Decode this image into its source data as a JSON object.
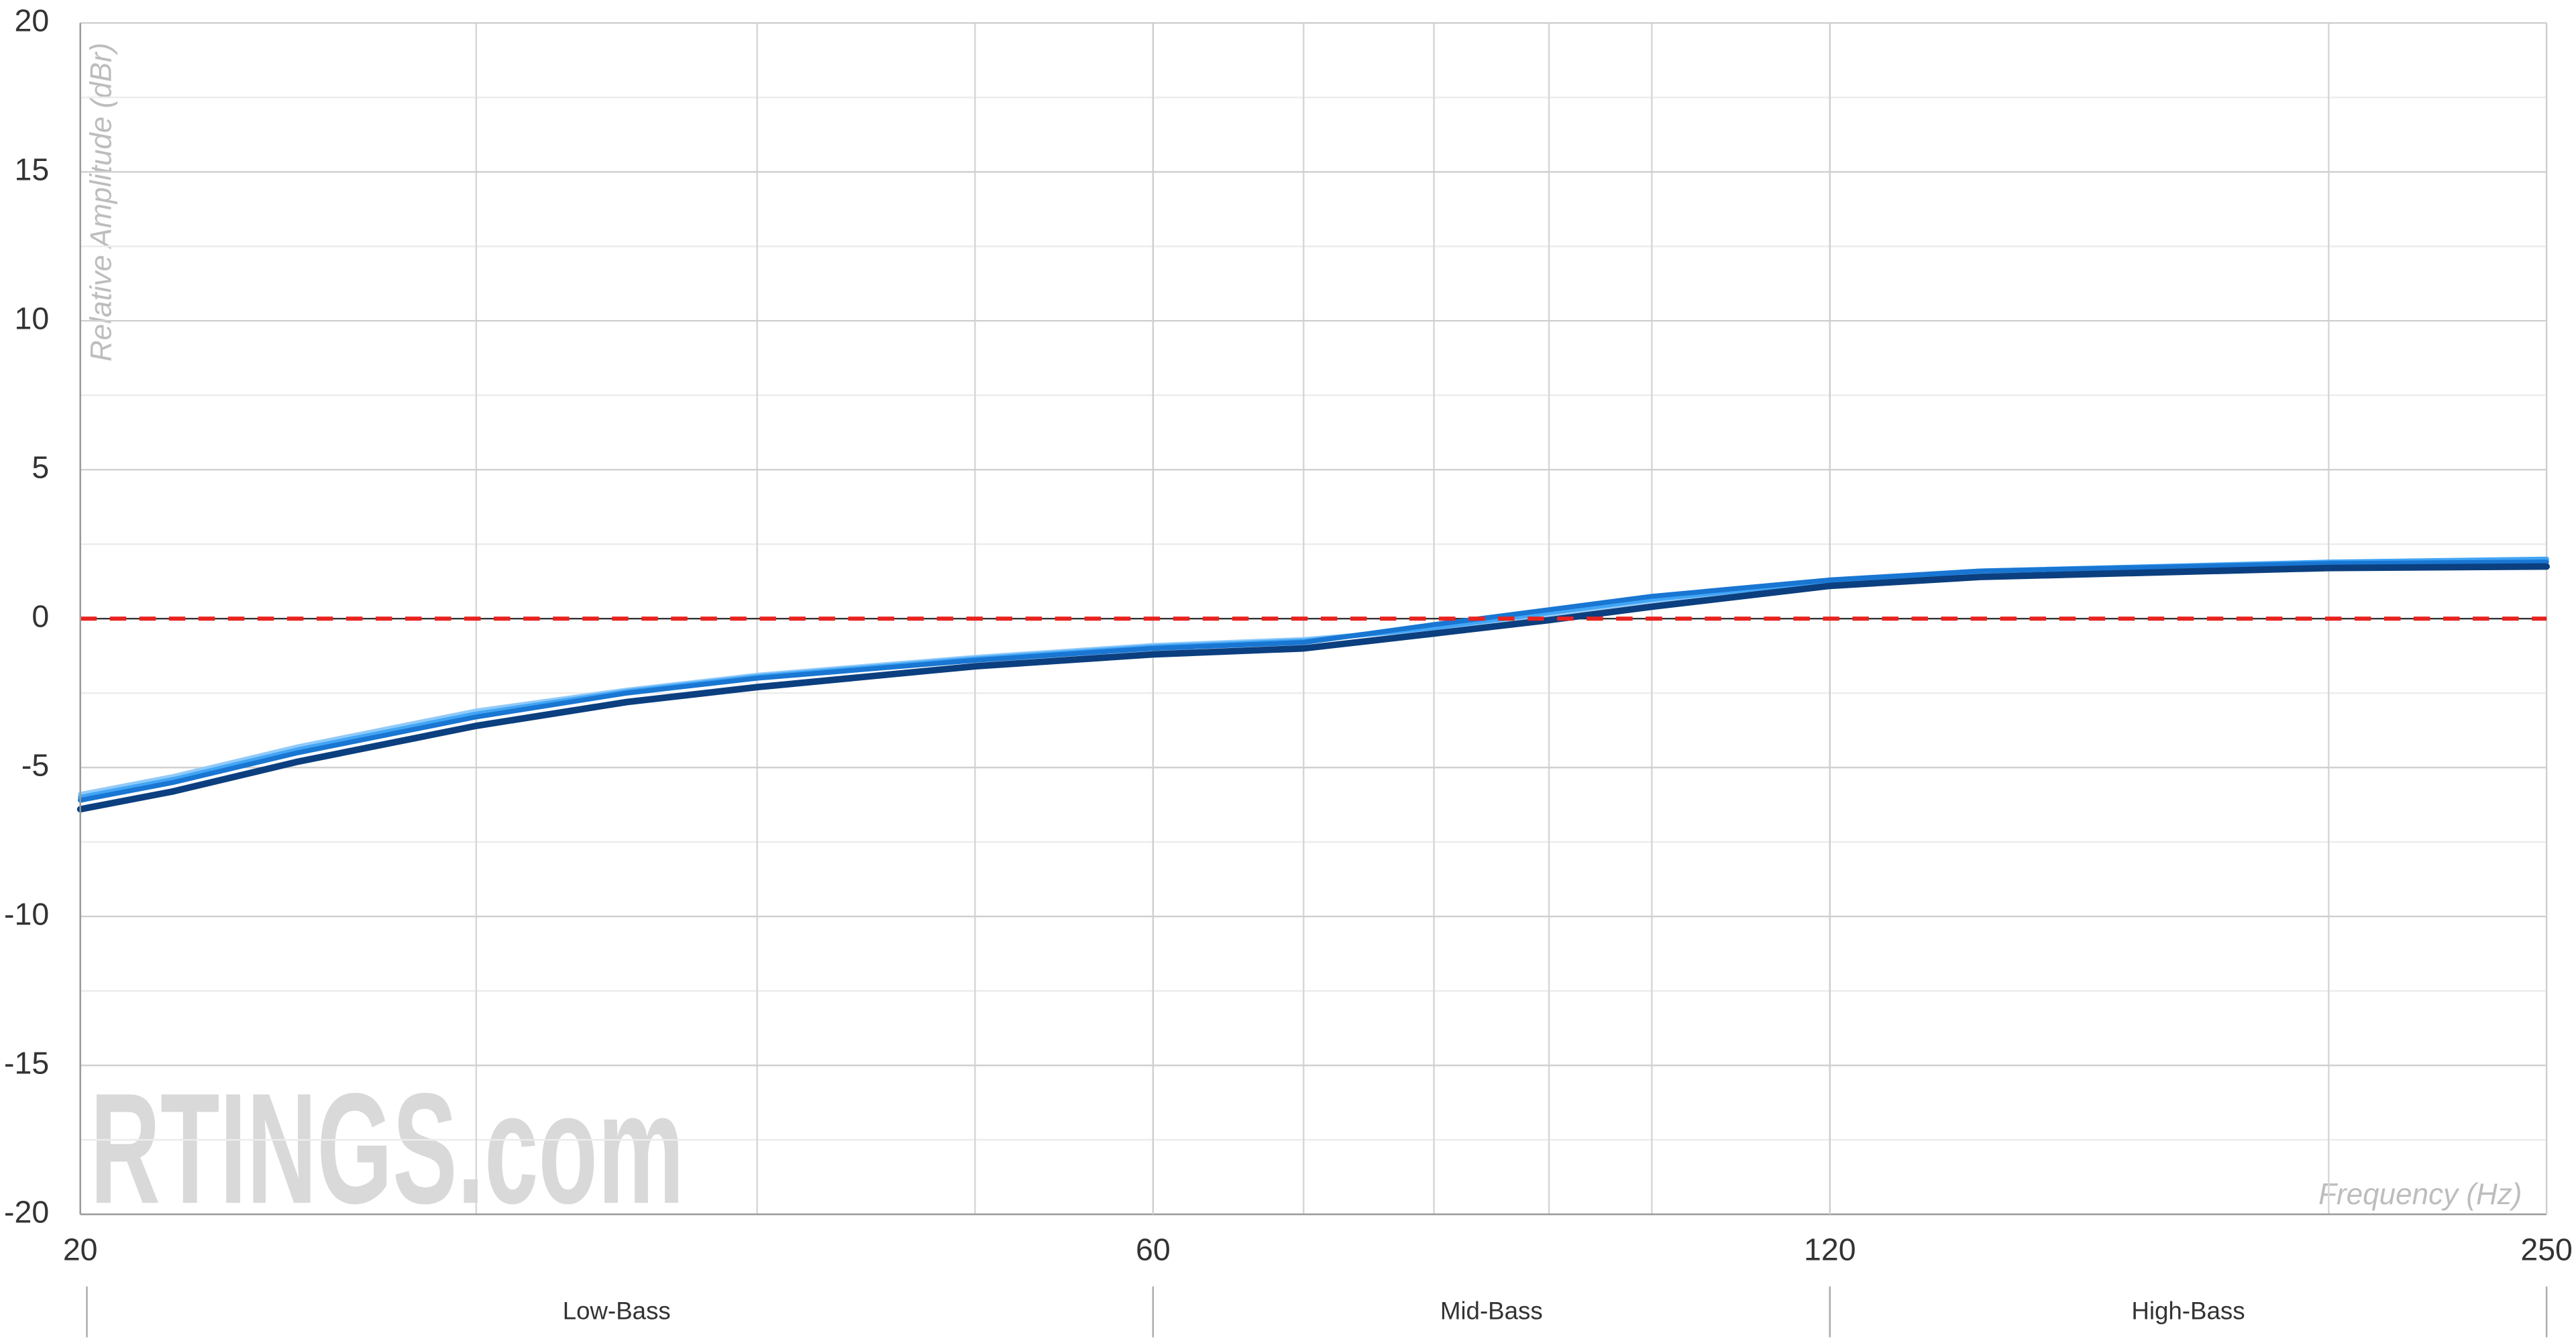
{
  "chart_data": {
    "type": "line",
    "ylabel": "Relative Amplitude (dBr)",
    "xlabel": "Frequency (Hz)",
    "watermark": "RTINGS.com",
    "x": [
      20,
      22,
      25,
      30,
      35,
      40,
      50,
      60,
      70,
      80,
      90,
      100,
      120,
      140,
      200,
      250
    ],
    "series": [
      {
        "color": "#90caf9",
        "values": [
          -5.9,
          -5.3,
          -4.3,
          -3.1,
          -2.4,
          -1.9,
          -1.3,
          -0.9,
          -0.7,
          -0.35,
          0.15,
          0.6,
          1.2,
          1.55,
          1.85,
          1.95
        ]
      },
      {
        "color": "#42a5f5",
        "values": [
          -6.0,
          -5.4,
          -4.4,
          -3.2,
          -2.45,
          -1.95,
          -1.35,
          -0.95,
          -0.75,
          -0.3,
          0.2,
          0.65,
          1.25,
          1.6,
          1.9,
          2.0
        ]
      },
      {
        "color": "#1976d2",
        "values": [
          -6.1,
          -5.5,
          -4.5,
          -3.3,
          -2.5,
          -2.0,
          -1.4,
          -1.0,
          -0.8,
          -0.2,
          0.3,
          0.75,
          1.3,
          1.6,
          1.85,
          1.9
        ]
      },
      {
        "color": "#0b3f7f",
        "values": [
          -6.4,
          -5.8,
          -4.8,
          -3.6,
          -2.8,
          -2.3,
          -1.6,
          -1.2,
          -1.0,
          -0.5,
          -0.05,
          0.4,
          1.1,
          1.4,
          1.7,
          1.75
        ]
      }
    ],
    "xscale": "log",
    "xlim": [
      20,
      250
    ],
    "xticks": [
      20,
      60,
      120,
      250
    ],
    "x_minor_gridlines": [
      30,
      40,
      50,
      70,
      80,
      90,
      100,
      200
    ],
    "ylim": [
      -20,
      20
    ],
    "yticks": [
      -20,
      -15,
      -10,
      -5,
      0,
      5,
      10,
      15,
      20
    ],
    "y_minor_gridlines": [
      -17.5,
      -12.5,
      -7.5,
      -2.5,
      2.5,
      7.5,
      12.5,
      17.5
    ],
    "grid": true,
    "reference_line": {
      "value": 0,
      "color": "#e8231f",
      "dashed": true
    },
    "bands": [
      {
        "label": "Low-Bass",
        "from": 20,
        "to": 60
      },
      {
        "label": "Mid-Bass",
        "from": 60,
        "to": 120
      },
      {
        "label": "High-Bass",
        "from": 120,
        "to": 250
      }
    ]
  }
}
